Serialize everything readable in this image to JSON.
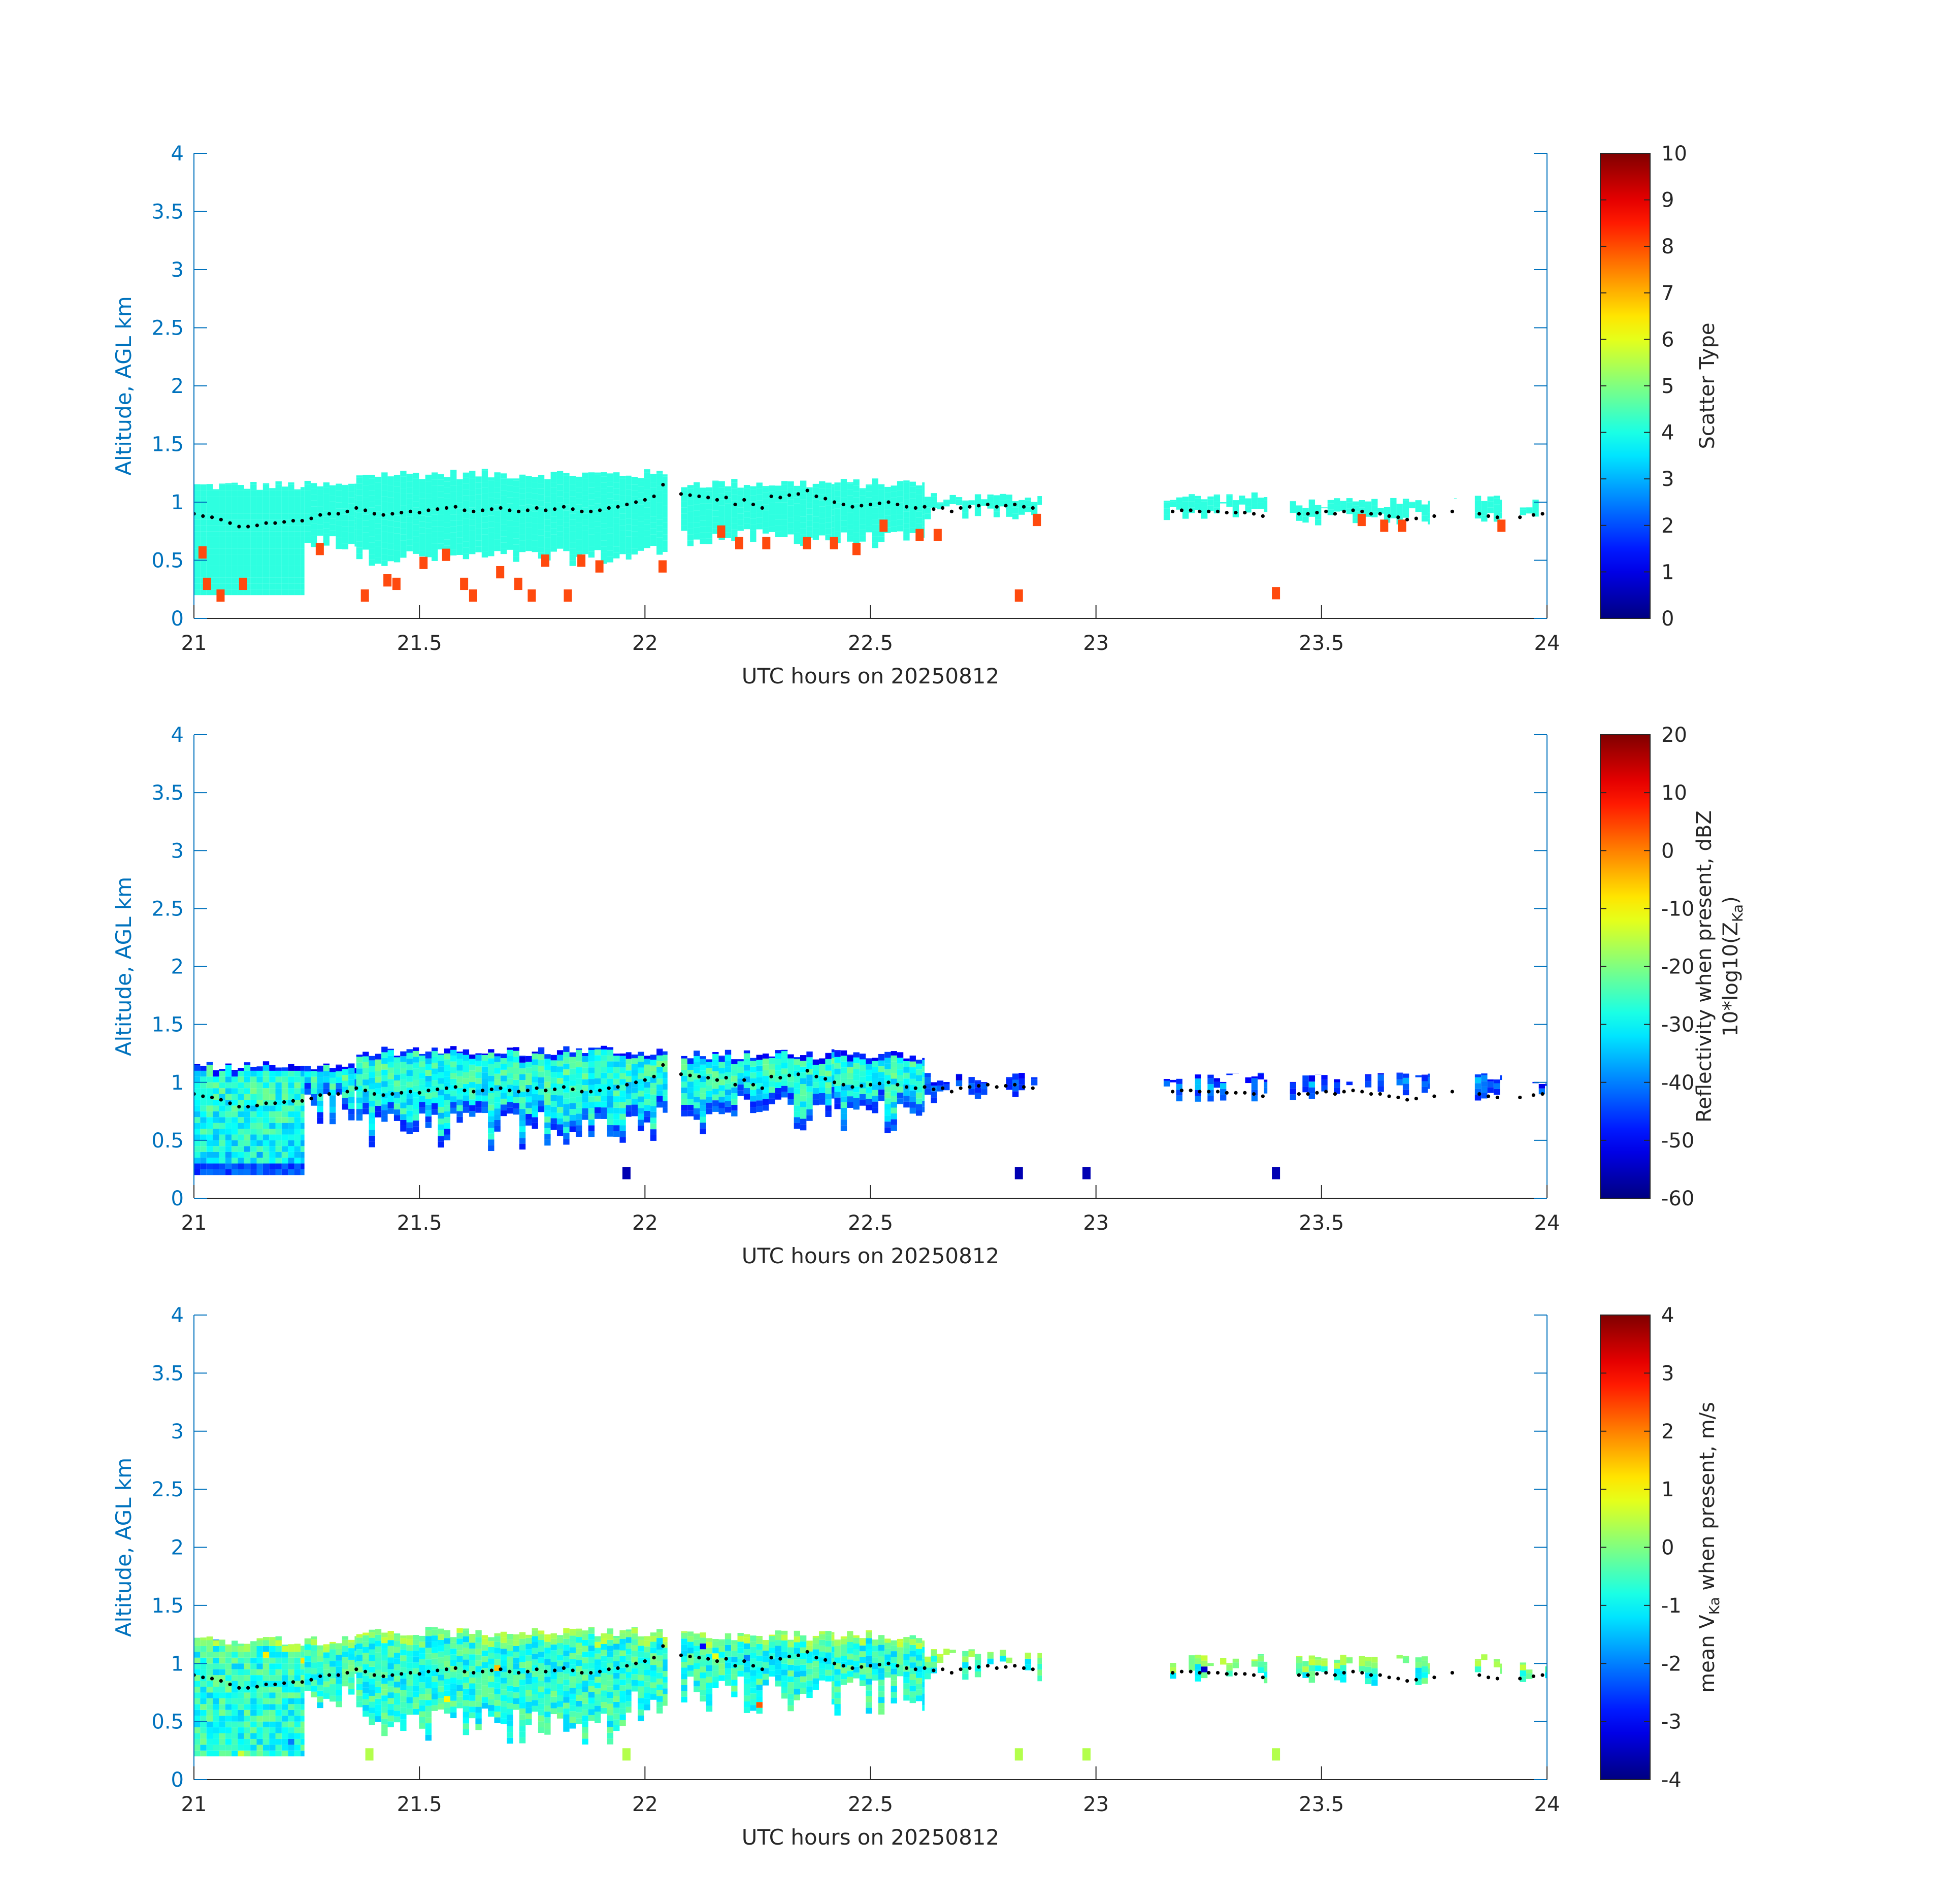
{
  "colors": {
    "axis_blue": "#0072BD",
    "axis_black": "#262626",
    "scatter_cloud": "#2EFFE0",
    "scatter_drizzle": "#FF4A0E",
    "cloud_base_dots": "#000000"
  },
  "colormap": "jet",
  "chart_data": [
    {
      "type": "heatmap",
      "xlabel": "UTC hours on 20250812",
      "ylabel": "Altitude, AGL km",
      "xlim": [
        21,
        24
      ],
      "ylim": [
        0,
        4
      ],
      "xticks": [
        "21",
        "21.5",
        "22",
        "22.5",
        "23",
        "23.5",
        "24"
      ],
      "yticks": [
        "0",
        "0.5",
        "1",
        "1.5",
        "2",
        "2.5",
        "3",
        "3.5",
        "4"
      ],
      "colorbar": {
        "label": "Scatter Type",
        "label_line2": "",
        "label_sub": "",
        "label_suffix": "",
        "range": [
          0,
          10
        ],
        "ticks": [
          "0",
          "1",
          "2",
          "3",
          "4",
          "5",
          "6",
          "7",
          "8",
          "9",
          "10"
        ]
      },
      "field": "scatter_type",
      "segments": [
        {
          "x": [
            21.0,
            21.245
          ],
          "top": 1.15,
          "bottom": 0.2
        },
        {
          "x": [
            21.245,
            21.36
          ],
          "top": 1.15,
          "bottom": 0.58
        },
        {
          "x": [
            21.36,
            21.97
          ],
          "top": 1.25,
          "bottom": 0.45
        },
        {
          "x": [
            21.97,
            22.05
          ],
          "top": 1.25,
          "bottom": 0.5
        },
        {
          "x": [
            22.08,
            22.42
          ],
          "top": 1.17,
          "bottom": 0.62
        },
        {
          "x": [
            22.42,
            22.62
          ],
          "top": 1.17,
          "bottom": 0.6
        },
        {
          "x": [
            22.62,
            22.88
          ],
          "top": 1.05,
          "bottom": 0.84
        },
        {
          "x": [
            23.15,
            23.38
          ],
          "top": 1.05,
          "bottom": 0.84
        },
        {
          "x": [
            23.43,
            23.74
          ],
          "top": 1.0,
          "bottom": 0.8
        },
        {
          "x": [
            23.78,
            23.8
          ],
          "top": 1.05,
          "bottom": 0.9
        },
        {
          "x": [
            23.84,
            23.9
          ],
          "top": 1.05,
          "bottom": 0.82
        },
        {
          "x": [
            23.94,
            24.0
          ],
          "top": 1.0,
          "bottom": 0.86
        }
      ],
      "drizzle_pixels": [
        [
          21.01,
          0.57
        ],
        [
          21.02,
          0.3
        ],
        [
          21.05,
          0.2
        ],
        [
          21.1,
          0.3
        ],
        [
          21.27,
          0.6
        ],
        [
          21.37,
          0.2
        ],
        [
          21.42,
          0.33
        ],
        [
          21.44,
          0.3
        ],
        [
          21.5,
          0.48
        ],
        [
          21.55,
          0.55
        ],
        [
          21.59,
          0.3
        ],
        [
          21.61,
          0.2
        ],
        [
          21.67,
          0.4
        ],
        [
          21.71,
          0.3
        ],
        [
          21.74,
          0.2
        ],
        [
          21.77,
          0.5
        ],
        [
          21.82,
          0.2
        ],
        [
          21.85,
          0.5
        ],
        [
          21.89,
          0.45
        ],
        [
          22.03,
          0.45
        ],
        [
          22.16,
          0.75
        ],
        [
          22.2,
          0.65
        ],
        [
          22.26,
          0.65
        ],
        [
          22.35,
          0.65
        ],
        [
          22.41,
          0.65
        ],
        [
          22.46,
          0.6
        ],
        [
          22.52,
          0.8
        ],
        [
          22.6,
          0.72
        ],
        [
          22.64,
          0.72
        ],
        [
          22.82,
          0.2
        ],
        [
          22.86,
          0.85
        ],
        [
          23.39,
          0.22
        ],
        [
          23.58,
          0.85
        ],
        [
          23.63,
          0.8
        ],
        [
          23.67,
          0.8
        ],
        [
          23.89,
          0.8
        ]
      ]
    },
    {
      "type": "heatmap",
      "xlabel": "UTC hours on 20250812",
      "ylabel": "Altitude, AGL km",
      "xlim": [
        21,
        24
      ],
      "ylim": [
        0,
        4
      ],
      "xticks": [
        "21",
        "21.5",
        "22",
        "22.5",
        "23",
        "23.5",
        "24"
      ],
      "yticks": [
        "0",
        "0.5",
        "1",
        "1.5",
        "2",
        "2.5",
        "3",
        "3.5",
        "4"
      ],
      "colorbar": {
        "label": "Reflectivity when present, dBZ",
        "label_line2": "10*log10(Z",
        "label_sub": "Ka",
        "label_suffix": ")",
        "range": [
          -60,
          20
        ],
        "ticks": [
          "-60",
          "-50",
          "-40",
          "-30",
          "-20",
          "-10",
          "0",
          "10",
          "20"
        ]
      },
      "field": "reflectivity",
      "segments": [
        {
          "x": [
            21.0,
            21.245
          ],
          "top": 1.15,
          "bottom": 0.2
        },
        {
          "x": [
            21.245,
            21.36
          ],
          "top": 1.15,
          "bottom": 0.6
        },
        {
          "x": [
            21.36,
            21.97
          ],
          "top": 1.28,
          "bottom": 0.4
        },
        {
          "x": [
            21.97,
            22.05
          ],
          "top": 1.28,
          "bottom": 0.45
        },
        {
          "x": [
            22.08,
            22.42
          ],
          "top": 1.25,
          "bottom": 0.55
        },
        {
          "x": [
            22.42,
            22.62
          ],
          "top": 1.25,
          "bottom": 0.55
        },
        {
          "x": [
            22.62,
            22.88
          ],
          "top": 1.05,
          "bottom": 0.82
        },
        {
          "x": [
            23.15,
            23.38
          ],
          "top": 1.05,
          "bottom": 0.82
        },
        {
          "x": [
            23.43,
            23.74
          ],
          "top": 1.05,
          "bottom": 0.8
        },
        {
          "x": [
            23.84,
            23.9
          ],
          "top": 1.05,
          "bottom": 0.8
        },
        {
          "x": [
            23.94,
            24.0
          ],
          "top": 1.0,
          "bottom": 0.84
        }
      ],
      "isolated_pixels": [
        [
          22.82,
          0.22
        ],
        [
          22.97,
          0.22
        ],
        [
          23.39,
          0.22
        ],
        [
          21.95,
          0.22
        ]
      ]
    },
    {
      "type": "heatmap",
      "xlabel": "UTC hours on 20250812",
      "ylabel": "Altitude, AGL km",
      "xlim": [
        21,
        24
      ],
      "ylim": [
        0,
        4
      ],
      "xticks": [
        "21",
        "21.5",
        "22",
        "22.5",
        "23",
        "23.5",
        "24"
      ],
      "yticks": [
        "0",
        "0.5",
        "1",
        "1.5",
        "2",
        "2.5",
        "3",
        "3.5",
        "4"
      ],
      "colorbar": {
        "label": "mean V",
        "label_line2": "",
        "label_sub": "Ka",
        "label_suffix": " when present, m/s",
        "range": [
          -4,
          4
        ],
        "ticks": [
          "-4",
          "-3",
          "-2",
          "-1",
          "0",
          "1",
          "2",
          "3",
          "4"
        ]
      },
      "field": "doppler_velocity",
      "segments": [
        {
          "x": [
            21.0,
            21.245
          ],
          "top": 1.2,
          "bottom": 0.2
        },
        {
          "x": [
            21.245,
            21.36
          ],
          "top": 1.2,
          "bottom": 0.6
        },
        {
          "x": [
            21.36,
            21.97
          ],
          "top": 1.28,
          "bottom": 0.3
        },
        {
          "x": [
            21.97,
            22.05
          ],
          "top": 1.28,
          "bottom": 0.45
        },
        {
          "x": [
            22.08,
            22.42
          ],
          "top": 1.25,
          "bottom": 0.55
        },
        {
          "x": [
            22.42,
            22.62
          ],
          "top": 1.25,
          "bottom": 0.55
        },
        {
          "x": [
            22.62,
            22.88
          ],
          "top": 1.1,
          "bottom": 0.84
        },
        {
          "x": [
            23.15,
            23.38
          ],
          "top": 1.05,
          "bottom": 0.82
        },
        {
          "x": [
            23.43,
            23.74
          ],
          "top": 1.05,
          "bottom": 0.8
        },
        {
          "x": [
            23.84,
            23.9
          ],
          "top": 1.05,
          "bottom": 0.8
        },
        {
          "x": [
            23.94,
            24.0
          ],
          "top": 1.0,
          "bottom": 0.84
        }
      ],
      "isolated_pixels": [
        [
          22.82,
          0.22
        ],
        [
          22.97,
          0.22
        ],
        [
          23.39,
          0.22
        ],
        [
          21.95,
          0.22
        ],
        [
          21.38,
          0.22
        ]
      ]
    }
  ],
  "cloud_base": {
    "x": [
      21.0,
      21.02,
      21.04,
      21.06,
      21.08,
      21.1,
      21.12,
      21.14,
      21.16,
      21.18,
      21.2,
      21.22,
      21.24,
      21.26,
      21.28,
      21.3,
      21.32,
      21.34,
      21.36,
      21.38,
      21.4,
      21.42,
      21.44,
      21.46,
      21.48,
      21.5,
      21.52,
      21.54,
      21.56,
      21.58,
      21.6,
      21.62,
      21.64,
      21.66,
      21.68,
      21.7,
      21.72,
      21.74,
      21.76,
      21.78,
      21.8,
      21.82,
      21.84,
      21.86,
      21.88,
      21.9,
      21.92,
      21.94,
      21.96,
      21.98,
      22.0,
      22.02,
      22.04,
      22.08,
      22.1,
      22.12,
      22.14,
      22.16,
      22.18,
      22.2,
      22.22,
      22.24,
      22.26,
      22.28,
      22.3,
      22.32,
      22.34,
      22.36,
      22.38,
      22.4,
      22.42,
      22.44,
      22.46,
      22.48,
      22.5,
      22.52,
      22.54,
      22.56,
      22.58,
      22.6,
      22.62,
      22.64,
      22.66,
      22.68,
      22.7,
      22.72,
      22.74,
      22.76,
      22.78,
      22.8,
      22.82,
      22.84,
      22.86,
      23.17,
      23.19,
      23.21,
      23.23,
      23.25,
      23.27,
      23.29,
      23.31,
      23.33,
      23.35,
      23.37,
      23.45,
      23.47,
      23.49,
      23.51,
      23.53,
      23.55,
      23.57,
      23.59,
      23.61,
      23.63,
      23.65,
      23.67,
      23.69,
      23.71,
      23.75,
      23.79,
      23.85,
      23.87,
      23.89,
      23.94,
      23.97,
      23.99
    ],
    "y": [
      0.9,
      0.88,
      0.87,
      0.85,
      0.82,
      0.79,
      0.79,
      0.8,
      0.82,
      0.82,
      0.83,
      0.84,
      0.84,
      0.86,
      0.89,
      0.9,
      0.9,
      0.92,
      0.95,
      0.93,
      0.9,
      0.89,
      0.9,
      0.91,
      0.92,
      0.91,
      0.93,
      0.94,
      0.95,
      0.96,
      0.93,
      0.92,
      0.93,
      0.94,
      0.95,
      0.93,
      0.92,
      0.93,
      0.95,
      0.93,
      0.94,
      0.96,
      0.94,
      0.92,
      0.92,
      0.93,
      0.95,
      0.96,
      0.98,
      1.0,
      1.02,
      1.05,
      1.15,
      1.07,
      1.06,
      1.05,
      1.04,
      1.02,
      1.04,
      0.98,
      1.02,
      0.98,
      0.95,
      1.05,
      1.04,
      1.06,
      1.07,
      1.1,
      1.05,
      1.03,
      1.0,
      0.98,
      0.96,
      0.97,
      0.98,
      0.99,
      1.0,
      0.98,
      0.96,
      0.95,
      0.96,
      0.94,
      0.95,
      0.92,
      0.95,
      0.96,
      0.97,
      0.98,
      0.96,
      0.97,
      0.98,
      0.96,
      0.95,
      0.92,
      0.93,
      0.93,
      0.92,
      0.92,
      0.92,
      0.91,
      0.91,
      0.91,
      0.9,
      0.88,
      0.9,
      0.9,
      0.91,
      0.92,
      0.9,
      0.92,
      0.93,
      0.92,
      0.9,
      0.9,
      0.88,
      0.87,
      0.85,
      0.86,
      0.88,
      0.92,
      0.9,
      0.88,
      0.87,
      0.87,
      0.89,
      0.9
    ]
  }
}
